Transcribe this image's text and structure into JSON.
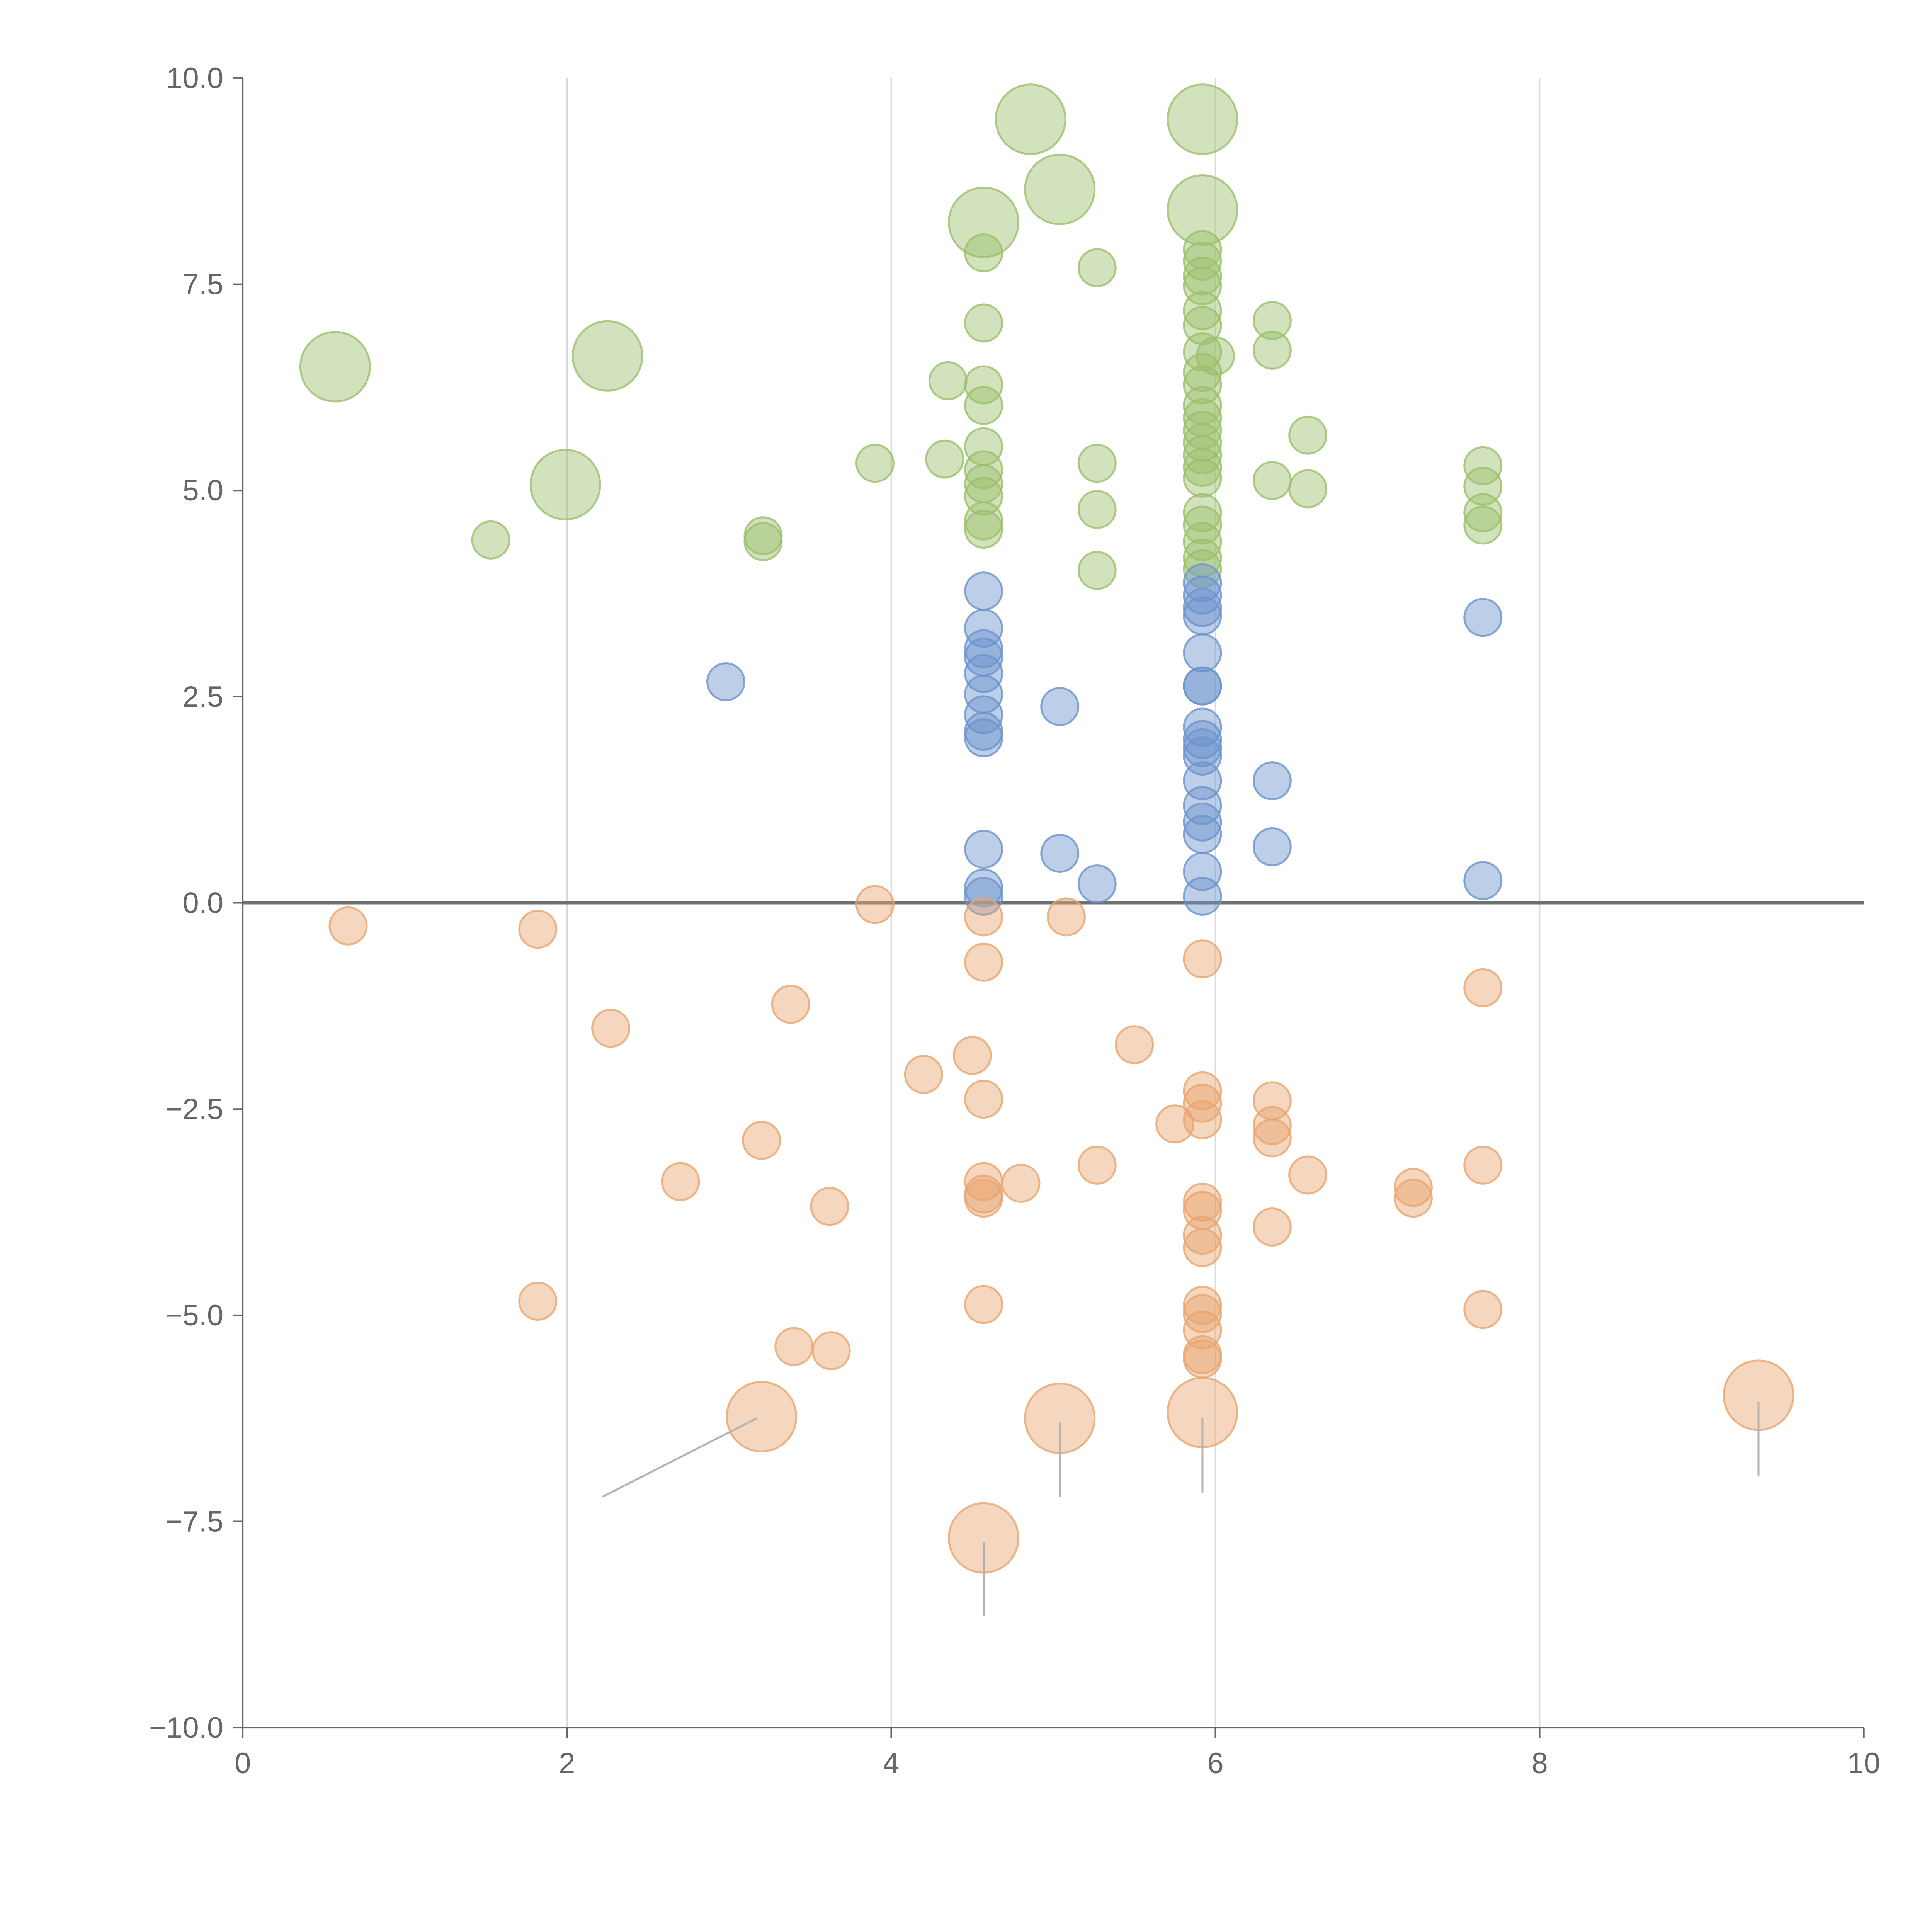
{
  "chart_data": {
    "type": "scatter",
    "title": "",
    "xlabel": "",
    "ylabel": "",
    "xlim": [
      0,
      10
    ],
    "ylim": [
      -10,
      10
    ],
    "grid": {
      "x": true,
      "y": false
    },
    "x_ticks": [
      0,
      2,
      4,
      6,
      8,
      10
    ],
    "x_tick_labels": [
      "0",
      "2",
      "4",
      "6",
      "8",
      "10"
    ],
    "y_ticks": [
      10,
      7.5,
      5,
      2.5,
      0,
      -2.5,
      -5,
      -7.5,
      -10
    ],
    "y_tick_labels": [
      "10.0",
      "7.5",
      "5.0",
      "2.5",
      "0.0",
      "−2.5",
      "−5.0",
      "−7.5",
      "−10.0"
    ],
    "zero_line": 0,
    "colors": {
      "green": "#9bbf6a",
      "blue": "#6b93cc",
      "orange": "#e8a56f",
      "axis": "#666666",
      "grid": "#d9d9d9",
      "zero_line": "#707070"
    },
    "series": [
      {
        "name": "green",
        "color": "#9bbf6a",
        "points": [
          [
            0.57,
            6.5,
            2
          ],
          [
            2.25,
            6.63,
            2
          ],
          [
            1.99,
            5.07,
            2
          ],
          [
            1.53,
            4.4,
            1
          ],
          [
            3.21,
            4.45,
            1
          ],
          [
            3.21,
            4.38,
            1
          ],
          [
            3.9,
            5.33,
            1
          ],
          [
            4.35,
            6.33,
            1
          ],
          [
            4.33,
            5.38,
            1
          ],
          [
            4.57,
            8.25,
            2
          ],
          [
            4.86,
            9.5,
            2
          ],
          [
            5.04,
            8.65,
            2
          ],
          [
            4.57,
            7.88,
            1
          ],
          [
            4.57,
            7.03,
            1
          ],
          [
            4.57,
            6.28,
            1
          ],
          [
            4.57,
            6.03,
            1
          ],
          [
            4.57,
            5.53,
            1
          ],
          [
            4.57,
            5.25,
            1
          ],
          [
            4.57,
            5.08,
            1
          ],
          [
            4.57,
            4.93,
            1
          ],
          [
            4.57,
            4.63,
            1
          ],
          [
            4.57,
            4.53,
            1
          ],
          [
            5.27,
            7.7,
            1
          ],
          [
            5.27,
            5.33,
            1
          ],
          [
            5.27,
            4.77,
            1
          ],
          [
            5.27,
            4.03,
            1
          ],
          [
            5.92,
            9.5,
            2
          ],
          [
            5.92,
            8.4,
            2
          ],
          [
            5.92,
            7.92,
            1
          ],
          [
            5.92,
            7.78,
            1
          ],
          [
            5.92,
            7.6,
            1
          ],
          [
            5.92,
            7.48,
            1
          ],
          [
            5.92,
            7.18,
            1
          ],
          [
            5.92,
            7.0,
            1
          ],
          [
            5.92,
            6.68,
            1
          ],
          [
            6.0,
            6.63,
            1
          ],
          [
            5.92,
            6.43,
            1
          ],
          [
            5.92,
            6.28,
            1
          ],
          [
            5.92,
            6.03,
            1
          ],
          [
            5.92,
            5.88,
            1
          ],
          [
            5.92,
            5.73,
            1
          ],
          [
            5.92,
            5.58,
            1
          ],
          [
            5.92,
            5.43,
            1
          ],
          [
            5.92,
            5.28,
            1
          ],
          [
            5.92,
            5.15,
            1
          ],
          [
            5.92,
            4.73,
            1
          ],
          [
            5.92,
            4.58,
            1
          ],
          [
            5.92,
            4.38,
            1
          ],
          [
            5.92,
            4.18,
            1
          ],
          [
            5.92,
            4.05,
            1
          ],
          [
            6.35,
            7.06,
            1
          ],
          [
            6.35,
            6.7,
            1
          ],
          [
            6.35,
            5.12,
            1
          ],
          [
            6.57,
            5.67,
            1
          ],
          [
            6.57,
            5.02,
            1
          ],
          [
            7.65,
            5.3,
            1
          ],
          [
            7.65,
            5.05,
            1
          ],
          [
            7.65,
            4.73,
            1
          ],
          [
            7.65,
            4.58,
            1
          ]
        ]
      },
      {
        "name": "blue",
        "color": "#6b93cc",
        "points": [
          [
            2.98,
            2.68,
            1
          ],
          [
            4.57,
            3.78,
            1
          ],
          [
            4.57,
            3.33,
            1
          ],
          [
            4.57,
            3.08,
            1
          ],
          [
            4.57,
            2.98,
            1
          ],
          [
            4.57,
            2.78,
            1
          ],
          [
            4.57,
            2.53,
            1
          ],
          [
            4.57,
            2.28,
            1
          ],
          [
            4.57,
            2.08,
            1
          ],
          [
            4.57,
            2.0,
            1
          ],
          [
            4.57,
            0.65,
            1
          ],
          [
            4.57,
            0.18,
            1
          ],
          [
            4.57,
            0.08,
            1
          ],
          [
            5.04,
            2.38,
            1
          ],
          [
            5.04,
            0.6,
            1
          ],
          [
            5.27,
            0.23,
            1
          ],
          [
            5.92,
            3.88,
            1
          ],
          [
            5.92,
            3.73,
            1
          ],
          [
            5.92,
            3.58,
            1
          ],
          [
            5.92,
            3.48,
            1
          ],
          [
            5.92,
            3.03,
            1
          ],
          [
            5.92,
            2.63,
            1
          ],
          [
            5.92,
            2.63,
            1
          ],
          [
            5.92,
            2.13,
            1
          ],
          [
            5.92,
            1.98,
            1
          ],
          [
            5.92,
            1.88,
            1
          ],
          [
            5.92,
            1.78,
            1
          ],
          [
            5.92,
            1.48,
            1
          ],
          [
            5.92,
            1.18,
            1
          ],
          [
            5.92,
            0.98,
            1
          ],
          [
            5.92,
            0.83,
            1
          ],
          [
            5.92,
            0.38,
            1
          ],
          [
            5.92,
            0.08,
            1
          ],
          [
            6.35,
            1.48,
            1
          ],
          [
            6.35,
            0.68,
            1
          ],
          [
            7.65,
            3.46,
            1
          ],
          [
            7.65,
            0.27,
            1
          ]
        ]
      },
      {
        "name": "orange",
        "color": "#e8a56f",
        "points": [
          [
            0.65,
            -0.28,
            1
          ],
          [
            1.82,
            -0.32,
            1
          ],
          [
            2.27,
            -1.52,
            1
          ],
          [
            1.82,
            -4.83,
            1
          ],
          [
            2.7,
            -3.38,
            1
          ],
          [
            3.2,
            -2.88,
            1
          ],
          [
            3.38,
            -1.23,
            1
          ],
          [
            3.62,
            -3.68,
            1
          ],
          [
            3.4,
            -5.38,
            1
          ],
          [
            3.63,
            -5.43,
            1
          ],
          [
            3.2,
            -6.23,
            2
          ],
          [
            3.9,
            -0.02,
            1
          ],
          [
            4.2,
            -2.08,
            1
          ],
          [
            4.5,
            -1.85,
            1
          ],
          [
            4.57,
            -0.17,
            1
          ],
          [
            4.57,
            -0.72,
            1
          ],
          [
            4.57,
            -2.38,
            1
          ],
          [
            4.57,
            -3.38,
            1
          ],
          [
            4.57,
            -3.53,
            1
          ],
          [
            4.57,
            -3.58,
            1
          ],
          [
            4.8,
            -3.4,
            1
          ],
          [
            4.57,
            -4.87,
            1
          ],
          [
            4.57,
            -7.7,
            2
          ],
          [
            5.08,
            -0.17,
            1
          ],
          [
            5.04,
            -6.25,
            2
          ],
          [
            5.27,
            -3.18,
            1
          ],
          [
            5.5,
            -1.72,
            1
          ],
          [
            5.75,
            -2.68,
            1
          ],
          [
            5.92,
            -0.68,
            1
          ],
          [
            5.92,
            -2.28,
            1
          ],
          [
            5.92,
            -2.43,
            1
          ],
          [
            5.92,
            -2.63,
            1
          ],
          [
            5.92,
            -3.63,
            1
          ],
          [
            5.92,
            -3.73,
            1
          ],
          [
            5.92,
            -4.03,
            1
          ],
          [
            5.92,
            -4.18,
            1
          ],
          [
            5.92,
            -4.88,
            1
          ],
          [
            5.92,
            -4.98,
            1
          ],
          [
            5.92,
            -5.18,
            1
          ],
          [
            5.92,
            -5.48,
            1
          ],
          [
            5.92,
            -5.53,
            1
          ],
          [
            5.92,
            -6.18,
            2
          ],
          [
            6.35,
            -2.4,
            1
          ],
          [
            6.35,
            -2.7,
            1
          ],
          [
            6.35,
            -2.85,
            1
          ],
          [
            6.35,
            -3.93,
            1
          ],
          [
            6.57,
            -3.3,
            1
          ],
          [
            7.22,
            -3.45,
            1
          ],
          [
            7.22,
            -3.58,
            1
          ],
          [
            7.65,
            -1.03,
            1
          ],
          [
            7.65,
            -3.18,
            1
          ],
          [
            7.65,
            -4.93,
            1
          ],
          [
            9.35,
            -5.97,
            2
          ]
        ]
      }
    ],
    "leader_lines": [
      {
        "from": [
          3.17,
          -6.25
        ],
        "to": [
          2.22,
          -7.2
        ],
        "color": "#b3b3b3"
      },
      {
        "from": [
          5.04,
          -6.3
        ],
        "to": [
          5.04,
          -7.2
        ],
        "color": "#b3b3b3"
      },
      {
        "from": [
          5.92,
          -6.25
        ],
        "to": [
          5.92,
          -7.15
        ],
        "color": "#b3b3b3"
      },
      {
        "from": [
          4.57,
          -7.75
        ],
        "to": [
          4.57,
          -8.65
        ],
        "color": "#b3b3b3"
      },
      {
        "from": [
          9.35,
          -6.05
        ],
        "to": [
          9.35,
          -6.95
        ],
        "color": "#b3b3b3"
      }
    ]
  }
}
